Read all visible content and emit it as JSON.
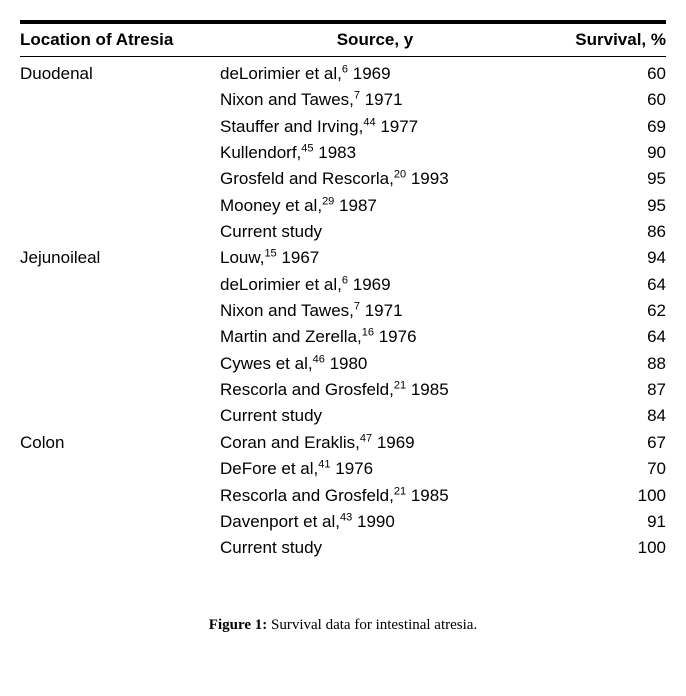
{
  "header": {
    "location": "Location of Atresia",
    "source": "Source, y",
    "survival": "Survival, %"
  },
  "groups": [
    {
      "location": "Duodenal",
      "rows": [
        {
          "author": "deLorimier et al,",
          "ref": "6",
          "year": " 1969",
          "survival": "60"
        },
        {
          "author": "Nixon and Tawes,",
          "ref": "7",
          "year": " 1971",
          "survival": "60"
        },
        {
          "author": "Stauffer and Irving,",
          "ref": "44",
          "year": " 1977",
          "survival": "69"
        },
        {
          "author": "Kullendorf,",
          "ref": "45",
          "year": " 1983",
          "survival": "90"
        },
        {
          "author": "Grosfeld and Rescorla,",
          "ref": "20",
          "year": " 1993",
          "survival": "95"
        },
        {
          "author": "Mooney et al,",
          "ref": "29",
          "year": " 1987",
          "survival": "95"
        },
        {
          "author": "Current study",
          "ref": "",
          "year": "",
          "survival": "86"
        }
      ]
    },
    {
      "location": "Jejunoileal",
      "rows": [
        {
          "author": "Louw,",
          "ref": "15",
          "year": " 1967",
          "survival": "94"
        },
        {
          "author": "deLorimier et al,",
          "ref": "6",
          "year": " 1969",
          "survival": "64"
        },
        {
          "author": "Nixon and Tawes,",
          "ref": "7",
          "year": " 1971",
          "survival": "62"
        },
        {
          "author": "Martin and Zerella,",
          "ref": "16",
          "year": " 1976",
          "survival": "64"
        },
        {
          "author": "Cywes et al,",
          "ref": "46",
          "year": " 1980",
          "survival": "88"
        },
        {
          "author": "Rescorla and Grosfeld,",
          "ref": "21",
          "year": " 1985",
          "survival": "87"
        },
        {
          "author": "Current study",
          "ref": "",
          "year": "",
          "survival": "84"
        }
      ]
    },
    {
      "location": "Colon",
      "rows": [
        {
          "author": "Coran and Eraklis,",
          "ref": "47",
          "year": " 1969",
          "survival": "67"
        },
        {
          "author": "DeFore et al,",
          "ref": "41",
          "year": " 1976",
          "survival": "70"
        },
        {
          "author": "Rescorla and Grosfeld,",
          "ref": "21",
          "year": " 1985",
          "survival": "100"
        },
        {
          "author": "Davenport et al,",
          "ref": "43",
          "year": " 1990",
          "survival": "91"
        },
        {
          "author": "Current study",
          "ref": "",
          "year": "",
          "survival": "100"
        }
      ]
    }
  ],
  "caption": {
    "label": "Figure 1:",
    "text": " Survival data for intestinal atresia."
  },
  "style": {
    "font_size_body": 17,
    "font_size_ref": 11,
    "text_color": "#000000",
    "background": "#ffffff",
    "top_rule_width": 4
  }
}
